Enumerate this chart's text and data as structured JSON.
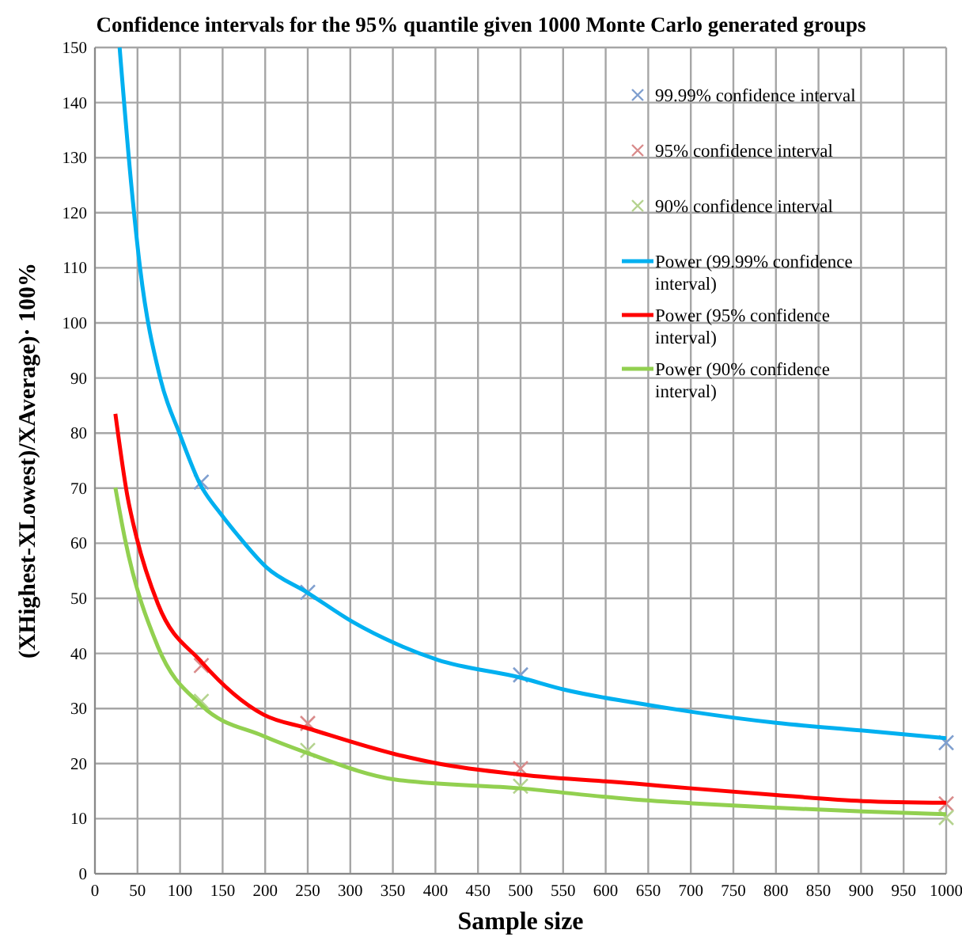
{
  "chart_data": {
    "type": "scatter",
    "title": "Confidence  intervals  for the 95% quantile  given  1000 Monte  Carlo  generated  groups",
    "xlabel": "Sample size",
    "ylabel": "(XHighest-XLowest)/XAverage)· 100%",
    "xlim": [
      0,
      1000
    ],
    "xticks": [
      0,
      50,
      100,
      150,
      200,
      250,
      300,
      350,
      400,
      450,
      500,
      550,
      600,
      650,
      700,
      750,
      800,
      850,
      900,
      950,
      1000
    ],
    "ylim": [
      0,
      150
    ],
    "yticks": [
      0,
      10,
      20,
      30,
      40,
      50,
      60,
      70,
      80,
      90,
      100,
      110,
      120,
      130,
      140,
      150
    ],
    "grid": true,
    "legend": "top right",
    "marker": "cross",
    "series": [
      {
        "name": "99.99% confidence interval",
        "color": "#7f9fcf",
        "x": [
          125,
          250,
          500,
          1000
        ],
        "values": [
          71.1,
          51.1,
          36.1,
          23.8
        ]
      },
      {
        "name": "95% confidence interval",
        "color": "#d98b8b",
        "x": [
          125,
          250,
          500,
          1000
        ],
        "values": [
          37.8,
          27.3,
          19.1,
          12.7
        ]
      },
      {
        "name": "90% confidence interval",
        "color": "#b5d38f",
        "x": [
          125,
          250,
          500,
          1000
        ],
        "values": [
          31.3,
          22.4,
          15.9,
          10.2
        ]
      },
      {
        "type": "line",
        "marker": "none",
        "name": "Power (99.99% confidence interval)",
        "color": "#00b0f0",
        "x": [
          29,
          43,
          53,
          77,
          100,
          124,
          148,
          167,
          201,
          250,
          303,
          353,
          403,
          500,
          552,
          632,
          701,
          800,
          902,
          1000
        ],
        "values": [
          150,
          124.6,
          110,
          89.8,
          79.7,
          70.6,
          65.3,
          61.6,
          55.7,
          51,
          45.7,
          41.8,
          38.8,
          35.6,
          33.4,
          31.1,
          29.4,
          27.4,
          26,
          24.6
        ]
      },
      {
        "type": "line",
        "marker": "none",
        "name": "Power (95% confidence interval)",
        "color": "#ff0000",
        "x": [
          24,
          38,
          49,
          74,
          125,
          198,
          250,
          353,
          403,
          500,
          632,
          701,
          800,
          902,
          1000
        ],
        "values": [
          83.5,
          68.7,
          61,
          49,
          38.5,
          28.9,
          26.4,
          21.7,
          20,
          18,
          16.4,
          15.5,
          14.3,
          13.2,
          12.9
        ]
      },
      {
        "type": "line",
        "marker": "none",
        "name": "Power (90% confidence interval)",
        "color": "#92d050",
        "x": [
          24,
          35,
          74,
          125,
          198,
          250,
          353,
          500,
          632,
          701,
          800,
          902,
          1000
        ],
        "values": [
          70.1,
          61,
          41.2,
          30.6,
          25,
          21.9,
          17.1,
          15.5,
          13.5,
          12.8,
          12,
          11.3,
          10.8
        ]
      }
    ]
  }
}
